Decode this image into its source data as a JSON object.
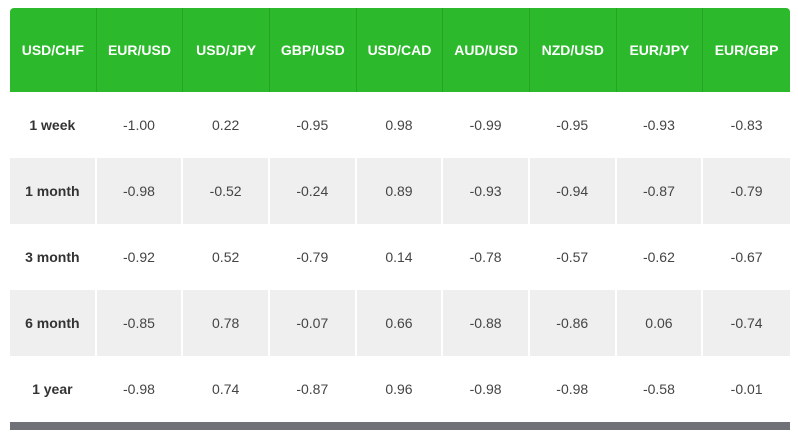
{
  "table": {
    "header": [
      "USD/CHF",
      "EUR/USD",
      "USD/JPY",
      "GBP/USD",
      "USD/CAD",
      "AUD/USD",
      "NZD/USD",
      "EUR/JPY",
      "EUR/GBP"
    ],
    "rows": [
      {
        "label": "1 week",
        "values": [
          "-1.00",
          "0.22",
          "-0.95",
          "0.98",
          "-0.99",
          "-0.95",
          "-0.93",
          "-0.83"
        ]
      },
      {
        "label": "1 month",
        "values": [
          "-0.98",
          "-0.52",
          "-0.24",
          "0.89",
          "-0.93",
          "-0.94",
          "-0.87",
          "-0.79"
        ]
      },
      {
        "label": "3 month",
        "values": [
          "-0.92",
          "0.52",
          "-0.79",
          "0.14",
          "-0.78",
          "-0.57",
          "-0.62",
          "-0.67"
        ]
      },
      {
        "label": "6 month",
        "values": [
          "-0.85",
          "0.78",
          "-0.07",
          "0.66",
          "-0.88",
          "-0.86",
          "0.06",
          "-0.74"
        ]
      },
      {
        "label": "1 year",
        "values": [
          "-0.98",
          "0.74",
          "-0.87",
          "0.96",
          "-0.98",
          "-0.98",
          "-0.58",
          "-0.01"
        ]
      }
    ]
  }
}
